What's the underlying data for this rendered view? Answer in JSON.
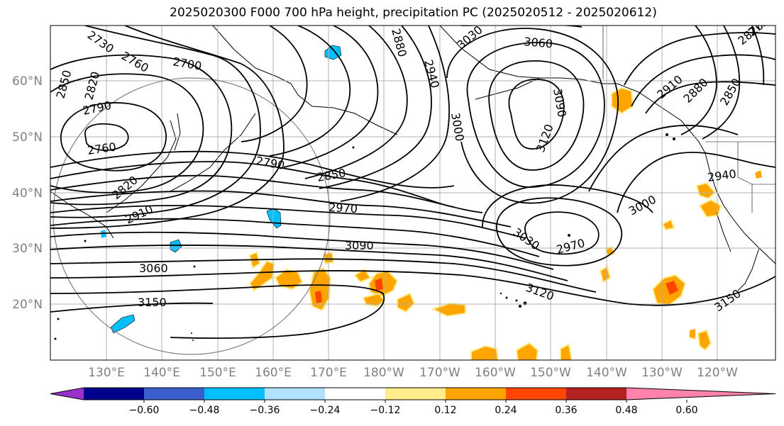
{
  "title": "2025020300 F000 700 hPa height, precipitation PC (2025020512 - 2025020612)",
  "lat_labels": [
    "60°N",
    "50°N",
    "40°N",
    "30°N",
    "20°N"
  ],
  "lon_labels": [
    "130°E",
    "140°E",
    "150°E",
    "160°E",
    "170°E",
    "180°W",
    "170°W",
    "160°W",
    "150°W",
    "140°W",
    "130°W",
    "120°W"
  ],
  "contour_labels": [
    "2730",
    "2760",
    "2700",
    "2820",
    "2850",
    "2790",
    "2760",
    "2820",
    "2910",
    "2790",
    "2850",
    "2970",
    "3090",
    "3060",
    "3150",
    "2880",
    "2940",
    "3000",
    "3030",
    "3060",
    "3090",
    "3120",
    "2970",
    "3030",
    "3120",
    "3000",
    "2940",
    "2910",
    "2880",
    "2850",
    "2820",
    "2790",
    "3150"
  ],
  "colorbar": {
    "ticks": [
      "−0.60",
      "−0.48",
      "−0.36",
      "−0.24",
      "−0.12",
      "0.12",
      "0.24",
      "0.36",
      "0.48",
      "0.60"
    ],
    "colors": [
      "#9932cc",
      "#00008b",
      "#3a5fcd",
      "#00bfff",
      "#b0e2ff",
      "#ffffff",
      "#ffec8b",
      "#ffa500",
      "#ff4500",
      "#b22222",
      "#ff82ab"
    ]
  },
  "colors": {
    "negative_fill": "#00bfff",
    "negative_fill_light": "#b0e2ff",
    "positive_fill": "#ffa500",
    "positive_fill_light": "#ffec8b",
    "positive_fill_strong": "#ff4500",
    "contour": "#000000",
    "grid": "#b0b0b0",
    "axis_labels": "#808080"
  }
}
